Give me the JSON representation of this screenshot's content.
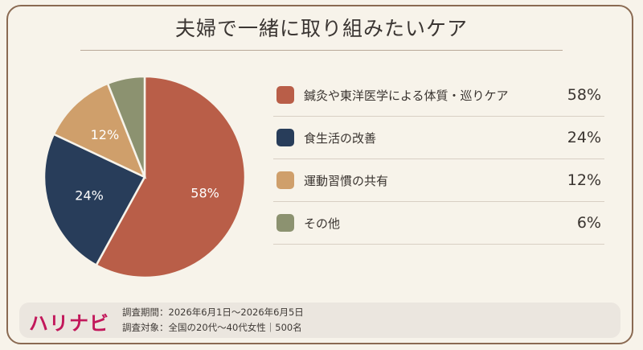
{
  "chart_data": {
    "type": "pie",
    "title": "夫婦で一緒に取り組みたいケア",
    "slices": [
      {
        "label": "鍼灸や東洋医学による体質・巡りケア",
        "value": 58,
        "value_label": "58%",
        "color": "#b95e48"
      },
      {
        "label": "食生活の改善",
        "value": 24,
        "value_label": "24%",
        "color": "#283d5a"
      },
      {
        "label": "運動習慣の共有",
        "value": 12,
        "value_label": "12%",
        "color": "#cf9f6b"
      },
      {
        "label": "その他",
        "value": 6,
        "value_label": "6%",
        "color": "#8c9270"
      }
    ]
  },
  "footer": {
    "brand": "ハリナビ",
    "period": "調査期間：2026年6月1日〜2026年6月5日",
    "target": "調査対象：全国の20代〜40代女性｜500名"
  }
}
